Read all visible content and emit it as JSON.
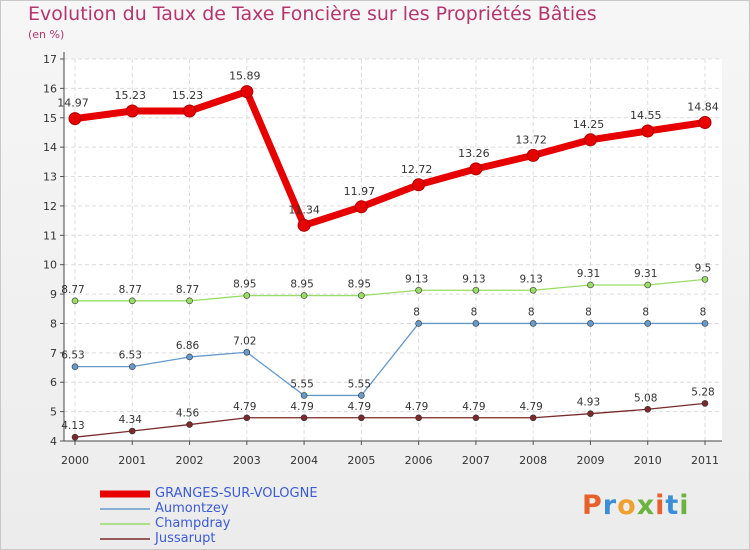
{
  "title": "Evolution du Taux de Taxe Foncière sur les Propriétés Bâties",
  "subtitle": "(en %)",
  "logo": {
    "text": "Proxiti",
    "colors": [
      "#e8612c",
      "#3b8fd6",
      "#f0a030",
      "#6db33f",
      "#e8612c",
      "#3b8fd6",
      "#6db33f"
    ]
  },
  "chart_data": {
    "type": "line",
    "title": "Evolution du Taux de Taxe Foncière sur les Propriétés Bâties",
    "ylabel": "(en %)",
    "xlabel": "",
    "x": [
      "2000",
      "2001",
      "2002",
      "2003",
      "2004",
      "2005",
      "2006",
      "2007",
      "2008",
      "2009",
      "2010",
      "2011"
    ],
    "ylim": [
      4,
      17
    ],
    "yticks": [
      "4",
      "5",
      "6",
      "7",
      "8",
      "9",
      "10",
      "11",
      "12",
      "13",
      "14",
      "15",
      "16",
      "17"
    ],
    "grid": true,
    "legend": "bottom-left",
    "series": [
      {
        "name": "GRANGES-SUR-VOLOGNE",
        "color": "#e60000",
        "values": [
          14.97,
          15.23,
          15.23,
          15.89,
          11.34,
          11.97,
          12.72,
          13.26,
          13.72,
          14.25,
          14.55,
          14.84
        ],
        "labels": [
          "14.97",
          "15.23",
          "15.23",
          "15.89",
          "11.34",
          "11.97",
          "12.72",
          "13.26",
          "13.72",
          "14.25",
          "14.55",
          "14.84"
        ]
      },
      {
        "name": "Aumontzey",
        "color": "#6699cc",
        "values": [
          6.53,
          6.53,
          6.86,
          7.02,
          5.55,
          5.55,
          8,
          8,
          8,
          8,
          8,
          8
        ],
        "labels": [
          "6.53",
          "6.53",
          "6.86",
          "7.02",
          "5.55",
          "5.55",
          "8",
          "8",
          "8",
          "8",
          "8",
          "8"
        ]
      },
      {
        "name": "Champdray",
        "color": "#99dd66",
        "values": [
          8.77,
          8.77,
          8.77,
          8.95,
          8.95,
          8.95,
          9.13,
          9.13,
          9.13,
          9.31,
          9.31,
          9.5
        ],
        "labels": [
          "8.77",
          "8.77",
          "8.77",
          "8.95",
          "8.95",
          "8.95",
          "9.13",
          "9.13",
          "9.13",
          "9.31",
          "9.31",
          "9.5"
        ]
      },
      {
        "name": "Jussarupt",
        "color": "#7a2a2a",
        "values": [
          4.13,
          4.34,
          4.56,
          4.79,
          4.79,
          4.79,
          4.79,
          4.79,
          4.79,
          4.93,
          5.08,
          5.28
        ],
        "labels": [
          "4.13",
          "4.34",
          "4.56",
          "4.79",
          "4.79",
          "4.79",
          "4.79",
          "4.79",
          "4.79",
          "4.93",
          "5.08",
          "5.28"
        ]
      }
    ]
  }
}
